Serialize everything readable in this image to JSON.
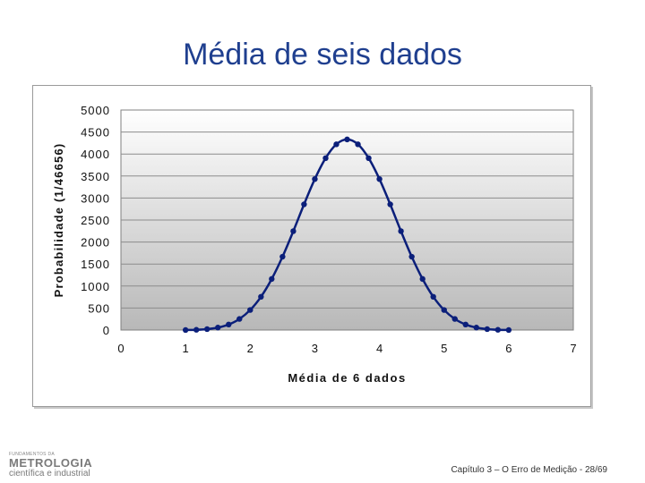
{
  "slide": {
    "title": "Média de seis dados",
    "footer": "Capítulo 3 – O Erro de Medição - 28/69"
  },
  "logo": {
    "small_text": "FUNDAMENTOS DA",
    "main_text": "METROLOGIA",
    "sub_text": "científica e industrial"
  },
  "chart_data": {
    "type": "scatter",
    "title": "",
    "xlabel": "Média de 6 dados",
    "ylabel": "Probabilidade (1/46656)",
    "xlim": [
      0,
      7
    ],
    "ylim": [
      0,
      5000
    ],
    "xticks": [
      "0",
      "1",
      "2",
      "3",
      "4",
      "5",
      "6",
      "7"
    ],
    "yticks": [
      "0",
      "500",
      "1000",
      "1500",
      "2000",
      "2500",
      "3000",
      "3500",
      "4000",
      "4500",
      "5000"
    ],
    "grid": true,
    "legend": "none",
    "line_color": "#0b1f7a",
    "series": [
      {
        "x": [
          1.0,
          1.167,
          1.333,
          1.5,
          1.667,
          1.833,
          2.0,
          2.167,
          2.333,
          2.5,
          2.667,
          2.833,
          3.0,
          3.167,
          3.333,
          3.5,
          3.667,
          3.833,
          4.0,
          4.167,
          4.333,
          4.5,
          4.667,
          4.833,
          5.0,
          5.167,
          5.333,
          5.5,
          5.667,
          5.833,
          6.0
        ],
        "y": [
          1,
          6,
          21,
          56,
          126,
          252,
          456,
          756,
          1161,
          1666,
          2247,
          2856,
          3431,
          3906,
          4221,
          4332,
          4221,
          3906,
          3431,
          2856,
          2247,
          1666,
          1161,
          756,
          456,
          252,
          126,
          56,
          21,
          6,
          1
        ]
      }
    ]
  }
}
